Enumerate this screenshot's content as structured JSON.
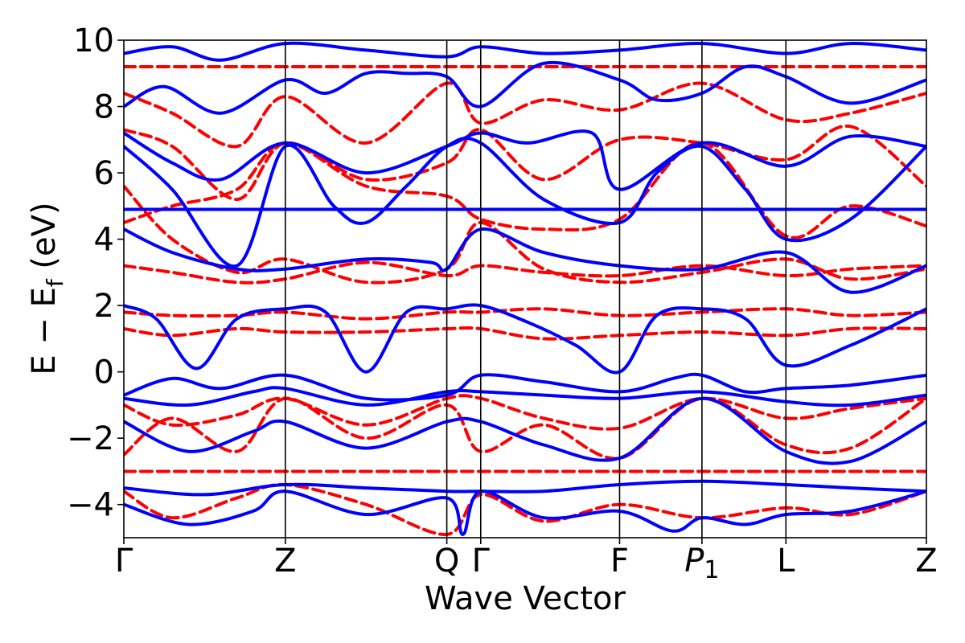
{
  "chart_data": {
    "type": "line",
    "title": "",
    "xlabel": "Wave Vector",
    "ylabel": "E − E",
    "ylabel_sub": "f",
    "ylabel_unit": " (eV)",
    "ylim": [
      -5,
      10
    ],
    "yticks": [
      -4,
      -2,
      0,
      2,
      4,
      6,
      8,
      10
    ],
    "ytick_labels": [
      "−4",
      "−2",
      "0",
      "2",
      "4",
      "6",
      "8",
      "10"
    ],
    "xlim": [
      0,
      5.0
    ],
    "kpoints": [
      {
        "label": "Γ",
        "x": 0.0
      },
      {
        "label": "Z",
        "x": 1.0
      },
      {
        "label": "Q",
        "x": 2.0
      },
      {
        "label": "Γ",
        "x": 2.21
      },
      {
        "label": "F",
        "x": 3.07
      },
      {
        "label": "P",
        "sub": "1",
        "x": 3.58
      },
      {
        "label": "L",
        "x": 4.1
      },
      {
        "label": "Z",
        "x": 4.97
      }
    ],
    "colors": {
      "solid": "#0000ff",
      "dashed": "#ff0000"
    },
    "series": [
      {
        "style": "solid",
        "x": [
          0,
          0.5,
          1.0,
          1.5,
          2.0,
          2.21,
          2.6,
          3.07,
          3.58,
          4.1,
          4.97
        ],
        "y": [
          4.9,
          4.9,
          4.9,
          4.9,
          4.9,
          4.9,
          4.9,
          4.9,
          4.9,
          4.9,
          4.9
        ]
      },
      {
        "style": "solid",
        "x": [
          0,
          0.2,
          0.45,
          0.7,
          1.0,
          1.25,
          1.5,
          1.75,
          2.0,
          2.21,
          2.5,
          2.8,
          3.07,
          3.3,
          3.58,
          3.85,
          4.1,
          4.5,
          4.97
        ],
        "y": [
          2.0,
          1.6,
          0.1,
          1.6,
          1.9,
          1.8,
          0.0,
          1.8,
          1.9,
          2.0,
          1.5,
          0.8,
          0.0,
          1.7,
          1.9,
          1.6,
          0.2,
          0.8,
          1.9
        ]
      },
      {
        "style": "solid",
        "x": [
          0,
          0.3,
          0.6,
          1.0,
          1.5,
          2.0,
          2.21,
          2.6,
          3.07,
          3.4,
          3.58,
          3.85,
          4.1,
          4.5,
          4.97
        ],
        "y": [
          -0.7,
          -0.2,
          -0.5,
          -0.1,
          -0.8,
          -0.7,
          -0.1,
          -0.3,
          -0.6,
          -0.2,
          -0.1,
          -0.6,
          -0.5,
          -0.4,
          -0.1
        ]
      },
      {
        "style": "solid",
        "x": [
          0,
          0.4,
          0.8,
          1.0,
          1.5,
          2.0,
          2.21,
          2.6,
          3.07,
          3.58,
          4.1,
          4.5,
          4.97
        ],
        "y": [
          -0.8,
          -1.0,
          -0.6,
          -0.5,
          -1.0,
          -0.6,
          -0.6,
          -0.7,
          -0.8,
          -0.6,
          -0.9,
          -1.0,
          -0.7
        ]
      },
      {
        "style": "solid",
        "x": [
          0,
          0.4,
          0.8,
          1.0,
          1.5,
          2.0,
          2.21,
          2.6,
          3.07,
          3.58,
          4.1,
          4.5,
          4.97
        ],
        "y": [
          -1.5,
          -2.4,
          -1.8,
          -1.5,
          -2.3,
          -1.5,
          -1.5,
          -2.2,
          -2.6,
          -0.8,
          -2.4,
          -2.7,
          -1.5
        ]
      },
      {
        "style": "solid",
        "x": [
          0,
          0.5,
          1.0,
          1.5,
          2.0,
          2.21,
          2.6,
          3.07,
          3.58,
          4.1,
          4.5,
          4.97
        ],
        "y": [
          -3.5,
          -3.7,
          -3.4,
          -3.5,
          -3.6,
          -3.6,
          -3.6,
          -3.4,
          -3.3,
          -3.4,
          -3.5,
          -3.6
        ]
      },
      {
        "style": "solid",
        "x": [
          0,
          0.3,
          0.7,
          1.0,
          1.3,
          1.5,
          1.75,
          2.0,
          2.21,
          2.6,
          3.07,
          3.3,
          3.58,
          3.85,
          4.1,
          4.5,
          4.97
        ],
        "y": [
          6.8,
          5.5,
          3.2,
          6.8,
          5.0,
          4.5,
          5.6,
          6.8,
          6.9,
          5.2,
          4.5,
          6.0,
          6.8,
          5.5,
          4.0,
          4.6,
          6.8
        ]
      },
      {
        "style": "solid",
        "x": [
          0,
          0.3,
          0.6,
          1.0,
          1.5,
          2.0,
          2.21,
          2.5,
          2.9,
          3.07,
          3.58,
          4.1,
          4.5,
          4.97
        ],
        "y": [
          7.2,
          6.3,
          5.8,
          6.9,
          6.0,
          6.8,
          7.2,
          6.9,
          7.2,
          5.5,
          6.9,
          6.2,
          7.1,
          6.8
        ]
      },
      {
        "style": "solid",
        "x": [
          0,
          0.25,
          0.6,
          1.0,
          1.25,
          1.5,
          1.75,
          2.0,
          2.21,
          2.6,
          3.07,
          3.3,
          3.58,
          3.85,
          4.1,
          4.5,
          4.97
        ],
        "y": [
          8.0,
          8.6,
          7.8,
          8.8,
          8.4,
          9.0,
          9.0,
          8.9,
          8.0,
          9.3,
          8.8,
          8.2,
          8.4,
          9.2,
          8.9,
          8.1,
          8.8
        ]
      },
      {
        "style": "solid",
        "x": [
          0,
          0.3,
          0.6,
          1.0,
          1.5,
          2.0,
          2.21,
          2.6,
          3.07,
          3.58,
          4.1,
          4.5,
          4.97
        ],
        "y": [
          9.6,
          9.8,
          9.4,
          9.9,
          9.7,
          9.5,
          9.8,
          9.6,
          9.7,
          9.9,
          9.6,
          9.9,
          9.7
        ]
      },
      {
        "style": "solid",
        "x": [
          0,
          0.3,
          0.7,
          1.0,
          1.5,
          1.9,
          2.0,
          2.21,
          2.6,
          3.07,
          3.58,
          4.1,
          4.5,
          4.97
        ],
        "y": [
          4.3,
          3.6,
          3.1,
          3.1,
          3.4,
          3.3,
          3.1,
          4.3,
          3.6,
          3.2,
          3.1,
          3.6,
          2.4,
          3.2
        ]
      },
      {
        "style": "solid",
        "x": [
          0,
          0.4,
          0.8,
          1.0,
          1.5,
          2.0,
          2.1,
          2.21,
          2.6,
          3.07,
          3.4,
          3.58,
          3.85,
          4.1,
          4.5,
          4.97
        ],
        "y": [
          -4.0,
          -4.6,
          -4.2,
          -3.6,
          -4.3,
          -3.8,
          -4.9,
          -3.6,
          -4.4,
          -4.2,
          -4.8,
          -4.4,
          -4.6,
          -4.3,
          -4.2,
          -3.6
        ]
      },
      {
        "style": "dashed",
        "x": [
          0,
          0.5,
          1.0,
          1.5,
          2.0,
          2.21,
          2.6,
          3.07,
          3.58,
          4.1,
          4.5,
          4.97
        ],
        "y": [
          9.2,
          9.2,
          9.2,
          9.2,
          9.2,
          9.2,
          9.2,
          9.2,
          9.2,
          9.2,
          9.2,
          9.2
        ]
      },
      {
        "style": "dashed",
        "x": [
          0,
          0.5,
          1.0,
          1.5,
          2.0,
          2.21,
          2.6,
          3.07,
          3.58,
          4.1,
          4.5,
          4.97
        ],
        "y": [
          -3.0,
          -3.0,
          -3.0,
          -3.0,
          -3.0,
          -3.0,
          -3.0,
          -3.0,
          -3.0,
          -3.0,
          -3.0,
          -3.0
        ]
      },
      {
        "style": "dashed",
        "x": [
          0,
          0.3,
          0.7,
          1.0,
          1.5,
          2.0,
          2.21,
          2.6,
          3.07,
          3.58,
          4.1,
          4.5,
          4.97
        ],
        "y": [
          1.3,
          1.1,
          1.3,
          1.2,
          1.2,
          1.3,
          1.3,
          1.0,
          1.1,
          1.2,
          1.1,
          1.3,
          1.3
        ]
      },
      {
        "style": "dashed",
        "x": [
          0,
          0.3,
          0.7,
          1.0,
          1.5,
          2.0,
          2.21,
          2.6,
          3.07,
          3.58,
          4.1,
          4.5,
          4.97
        ],
        "y": [
          1.8,
          1.7,
          1.7,
          1.8,
          1.6,
          1.8,
          1.8,
          1.9,
          1.7,
          1.8,
          1.9,
          1.7,
          1.8
        ]
      },
      {
        "style": "dashed",
        "x": [
          0,
          0.3,
          0.7,
          1.0,
          1.5,
          2.0,
          2.21,
          2.6,
          3.07,
          3.58,
          4.1,
          4.5,
          4.97
        ],
        "y": [
          3.2,
          3.0,
          2.7,
          2.8,
          3.3,
          2.9,
          3.2,
          3.0,
          2.9,
          3.2,
          2.9,
          3.1,
          3.2
        ]
      },
      {
        "style": "dashed",
        "x": [
          0,
          0.3,
          0.7,
          1.0,
          1.5,
          2.0,
          2.21,
          2.6,
          3.07,
          3.58,
          4.1,
          4.5,
          4.97
        ],
        "y": [
          4.5,
          5.0,
          5.5,
          6.9,
          5.6,
          5.3,
          4.6,
          4.3,
          4.6,
          6.9,
          4.1,
          5.0,
          4.4
        ]
      },
      {
        "style": "dashed",
        "x": [
          0,
          0.3,
          0.7,
          1.0,
          1.5,
          2.0,
          2.21,
          2.6,
          3.07,
          3.58,
          4.1,
          4.5,
          4.97
        ],
        "y": [
          7.3,
          6.8,
          5.2,
          6.9,
          5.8,
          6.3,
          7.3,
          5.8,
          7.0,
          6.9,
          6.4,
          7.4,
          5.6
        ]
      },
      {
        "style": "dashed",
        "x": [
          0,
          0.3,
          0.7,
          1.0,
          1.5,
          2.0,
          2.21,
          2.6,
          3.07,
          3.58,
          4.1,
          4.5,
          4.97
        ],
        "y": [
          8.4,
          7.8,
          6.8,
          8.3,
          6.9,
          8.7,
          7.5,
          8.2,
          7.9,
          8.7,
          7.6,
          7.8,
          8.4
        ]
      },
      {
        "style": "dashed",
        "x": [
          0,
          0.3,
          0.7,
          1.0,
          1.5,
          2.0,
          2.21,
          2.6,
          3.07,
          3.58,
          4.1,
          4.5,
          4.97
        ],
        "y": [
          -1.0,
          -1.6,
          -1.3,
          -0.8,
          -1.6,
          -0.8,
          -0.8,
          -1.4,
          -1.7,
          -0.8,
          -1.4,
          -1.1,
          -0.8
        ]
      },
      {
        "style": "dashed",
        "x": [
          0,
          0.3,
          0.7,
          1.0,
          1.5,
          2.0,
          2.21,
          2.6,
          3.07,
          3.58,
          4.1,
          4.5,
          4.97
        ],
        "y": [
          -2.5,
          -1.4,
          -2.4,
          -0.8,
          -2.0,
          -1.0,
          -2.4,
          -1.6,
          -2.6,
          -0.8,
          -2.2,
          -2.3,
          -0.8
        ]
      },
      {
        "style": "dashed",
        "x": [
          0,
          0.3,
          0.7,
          1.0,
          1.5,
          2.0,
          2.21,
          2.6,
          3.07,
          3.58,
          4.1,
          4.5,
          4.97
        ],
        "y": [
          -3.6,
          -4.4,
          -3.8,
          -3.4,
          -4.0,
          -4.9,
          -3.7,
          -4.5,
          -4.0,
          -4.4,
          -4.1,
          -4.3,
          -3.6
        ]
      },
      {
        "style": "dashed",
        "x": [
          0,
          0.3,
          0.7,
          1.0,
          1.5,
          2.0,
          2.21,
          2.6,
          3.07,
          3.58,
          4.1,
          4.5,
          4.97
        ],
        "y": [
          5.6,
          4.0,
          3.0,
          3.4,
          2.7,
          3.1,
          4.5,
          3.1,
          2.7,
          3.0,
          3.4,
          2.8,
          3.1
        ]
      }
    ]
  }
}
